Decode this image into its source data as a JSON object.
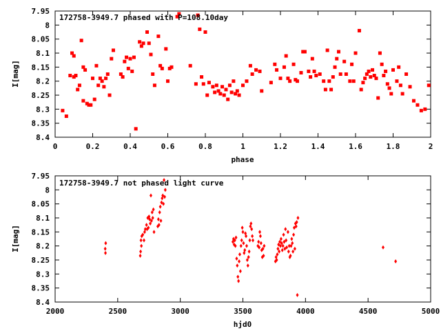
{
  "chart_data": [
    {
      "type": "scatter",
      "title": "172758-3949.7 phased with P=108.10day",
      "xlabel": "phase",
      "ylabel": "I[mag]",
      "xlim": [
        0,
        2
      ],
      "ylim": [
        7.95,
        8.4
      ],
      "y_inverted": true,
      "x_ticks": [
        "0",
        "0.2",
        "0.4",
        "0.6",
        "0.8",
        "1",
        "1.2",
        "1.4",
        "1.6",
        "1.8",
        "2"
      ],
      "y_ticks": [
        "7.95",
        "8",
        "8.05",
        "8.1",
        "8.15",
        "8.2",
        "8.25",
        "8.3",
        "8.35",
        "8.4"
      ],
      "marker_color": "#ff0000",
      "series": [
        {
          "points": [
            [
              0.04,
              8.305
            ],
            [
              0.06,
              8.325
            ],
            [
              0.08,
              8.18
            ],
            [
              0.09,
              8.1
            ],
            [
              0.1,
              8.185
            ],
            [
              0.1,
              8.11
            ],
            [
              0.11,
              8.18
            ],
            [
              0.12,
              8.23
            ],
            [
              0.13,
              8.215
            ],
            [
              0.14,
              8.055
            ],
            [
              0.15,
              8.15
            ],
            [
              0.15,
              8.27
            ],
            [
              0.16,
              8.16
            ],
            [
              0.17,
              8.28
            ],
            [
              0.18,
              8.285
            ],
            [
              0.19,
              8.285
            ],
            [
              0.2,
              8.19
            ],
            [
              0.21,
              8.265
            ],
            [
              0.22,
              8.145
            ],
            [
              0.23,
              8.215
            ],
            [
              0.24,
              8.19
            ],
            [
              0.25,
              8.2
            ],
            [
              0.26,
              8.22
            ],
            [
              0.27,
              8.19
            ],
            [
              0.28,
              8.175
            ],
            [
              0.29,
              8.25
            ],
            [
              0.3,
              8.12
            ],
            [
              0.31,
              8.09
            ],
            [
              0.35,
              8.175
            ],
            [
              0.36,
              8.185
            ],
            [
              0.37,
              8.13
            ],
            [
              0.38,
              8.115
            ],
            [
              0.39,
              8.155
            ],
            [
              0.4,
              8.12
            ],
            [
              0.41,
              8.165
            ],
            [
              0.42,
              8.115
            ],
            [
              0.43,
              8.37
            ],
            [
              0.45,
              8.06
            ],
            [
              0.46,
              8.075
            ],
            [
              0.47,
              8.065
            ],
            [
              0.49,
              8.025
            ],
            [
              0.5,
              8.065
            ],
            [
              0.51,
              8.105
            ],
            [
              0.52,
              8.175
            ],
            [
              0.53,
              8.215
            ],
            [
              0.55,
              8.04
            ],
            [
              0.56,
              8.145
            ],
            [
              0.57,
              8.155
            ],
            [
              0.59,
              8.085
            ],
            [
              0.6,
              8.2
            ],
            [
              0.61,
              8.155
            ],
            [
              0.62,
              8.15
            ],
            [
              0.65,
              7.97
            ],
            [
              0.66,
              7.96
            ],
            [
              0.72,
              8.145
            ],
            [
              0.75,
              8.21
            ],
            [
              0.76,
              7.965
            ],
            [
              0.77,
              8.015
            ],
            [
              0.78,
              8.185
            ],
            [
              0.79,
              8.21
            ],
            [
              0.8,
              8.025
            ],
            [
              0.81,
              8.25
            ],
            [
              0.82,
              8.205
            ],
            [
              0.84,
              8.22
            ],
            [
              0.85,
              8.24
            ],
            [
              0.86,
              8.215
            ],
            [
              0.87,
              8.235
            ],
            [
              0.88,
              8.245
            ],
            [
              0.89,
              8.22
            ],
            [
              0.9,
              8.25
            ],
            [
              0.91,
              8.23
            ],
            [
              0.92,
              8.265
            ],
            [
              0.93,
              8.215
            ],
            [
              0.94,
              8.24
            ],
            [
              0.95,
              8.2
            ],
            [
              0.96,
              8.245
            ],
            [
              0.97,
              8.235
            ],
            [
              0.98,
              8.25
            ],
            [
              1.0,
              8.215
            ],
            [
              1.02,
              8.2
            ],
            [
              1.04,
              8.145
            ],
            [
              1.05,
              8.175
            ],
            [
              1.07,
              8.16
            ],
            [
              1.09,
              8.165
            ],
            [
              1.1,
              8.235
            ],
            [
              1.15,
              8.205
            ],
            [
              1.17,
              8.14
            ],
            [
              1.18,
              8.16
            ],
            [
              1.2,
              8.19
            ],
            [
              1.22,
              8.15
            ],
            [
              1.23,
              8.11
            ],
            [
              1.24,
              8.19
            ],
            [
              1.25,
              8.2
            ],
            [
              1.27,
              8.14
            ],
            [
              1.28,
              8.195
            ],
            [
              1.29,
              8.2
            ],
            [
              1.31,
              8.17
            ],
            [
              1.32,
              8.095
            ],
            [
              1.33,
              8.095
            ],
            [
              1.35,
              8.165
            ],
            [
              1.36,
              8.185
            ],
            [
              1.37,
              8.12
            ],
            [
              1.38,
              8.165
            ],
            [
              1.39,
              8.18
            ],
            [
              1.41,
              8.175
            ],
            [
              1.43,
              8.2
            ],
            [
              1.44,
              8.23
            ],
            [
              1.45,
              8.09
            ],
            [
              1.46,
              8.2
            ],
            [
              1.47,
              8.23
            ],
            [
              1.48,
              8.185
            ],
            [
              1.49,
              8.15
            ],
            [
              1.5,
              8.12
            ],
            [
              1.51,
              8.095
            ],
            [
              1.52,
              8.175
            ],
            [
              1.54,
              8.13
            ],
            [
              1.55,
              8.175
            ],
            [
              1.57,
              8.2
            ],
            [
              1.58,
              8.14
            ],
            [
              1.59,
              8.2
            ],
            [
              1.6,
              8.1
            ],
            [
              1.62,
              8.02
            ],
            [
              1.63,
              8.23
            ],
            [
              1.64,
              8.205
            ],
            [
              1.65,
              8.19
            ],
            [
              1.66,
              8.175
            ],
            [
              1.67,
              8.165
            ],
            [
              1.68,
              8.185
            ],
            [
              1.69,
              8.16
            ],
            [
              1.7,
              8.18
            ],
            [
              1.71,
              8.19
            ],
            [
              1.72,
              8.26
            ],
            [
              1.73,
              8.1
            ],
            [
              1.74,
              8.14
            ],
            [
              1.75,
              8.18
            ],
            [
              1.76,
              8.165
            ],
            [
              1.77,
              8.21
            ],
            [
              1.78,
              8.225
            ],
            [
              1.79,
              8.245
            ],
            [
              1.8,
              8.16
            ],
            [
              1.82,
              8.2
            ],
            [
              1.83,
              8.15
            ],
            [
              1.84,
              8.215
            ],
            [
              1.85,
              8.245
            ],
            [
              1.87,
              8.175
            ],
            [
              1.89,
              8.22
            ],
            [
              1.91,
              8.27
            ],
            [
              1.93,
              8.285
            ],
            [
              1.95,
              8.305
            ],
            [
              1.97,
              8.3
            ],
            [
              1.99,
              8.215
            ]
          ]
        }
      ]
    },
    {
      "type": "scatter",
      "title": "172758-3949.7 not phased light curve",
      "xlabel": "hjd0",
      "ylabel": "I[mag]",
      "xlim": [
        2000,
        5000
      ],
      "ylim": [
        7.95,
        8.4
      ],
      "y_inverted": true,
      "x_ticks": [
        "2000",
        "2500",
        "3000",
        "3500",
        "4000",
        "4500",
        "5000"
      ],
      "y_ticks": [
        "7.95",
        "8",
        "8.05",
        "8.1",
        "8.15",
        "8.2",
        "8.25",
        "8.3",
        "8.35",
        "8.4"
      ],
      "marker_color": "#ff0000",
      "series": [
        {
          "points": [
            [
              2400,
              8.21
            ],
            [
              2402,
              8.225
            ],
            [
              2404,
              8.19
            ],
            [
              2680,
              8.235
            ],
            [
              2683,
              8.22
            ],
            [
              2686,
              8.18
            ],
            [
              2689,
              8.2
            ],
            [
              2692,
              8.165
            ],
            [
              2700,
              8.16
            ],
            [
              2710,
              8.18
            ],
            [
              2715,
              8.15
            ],
            [
              2720,
              8.14
            ],
            [
              2730,
              8.125
            ],
            [
              2735,
              8.14
            ],
            [
              2740,
              8.1
            ],
            [
              2745,
              8.135
            ],
            [
              2750,
              8.095
            ],
            [
              2755,
              8.105
            ],
            [
              2760,
              8.12
            ],
            [
              2765,
              8.02
            ],
            [
              2770,
              8.11
            ],
            [
              2775,
              8.08
            ],
            [
              2780,
              8.1
            ],
            [
              2785,
              8.07
            ],
            [
              2790,
              8.15
            ],
            [
              2820,
              8.13
            ],
            [
              2825,
              8.105
            ],
            [
              2830,
              8.125
            ],
            [
              2835,
              8.08
            ],
            [
              2840,
              8.06
            ],
            [
              2845,
              8.11
            ],
            [
              2850,
              8.045
            ],
            [
              2855,
              8.03
            ],
            [
              2860,
              8.02
            ],
            [
              2865,
              8.05
            ],
            [
              2870,
              7.965
            ],
            [
              2875,
              8.025
            ],
            [
              2880,
              8.0
            ],
            [
              3420,
              8.185
            ],
            [
              3425,
              8.175
            ],
            [
              3430,
              8.195
            ],
            [
              3435,
              8.18
            ],
            [
              3440,
              8.2
            ],
            [
              3445,
              8.17
            ],
            [
              3450,
              8.245
            ],
            [
              3455,
              8.27
            ],
            [
              3460,
              8.31
            ],
            [
              3465,
              8.325
            ],
            [
              3470,
              8.255
            ],
            [
              3475,
              8.23
            ],
            [
              3480,
              8.29
            ],
            [
              3485,
              8.2
            ],
            [
              3490,
              8.18
            ],
            [
              3495,
              8.135
            ],
            [
              3500,
              8.15
            ],
            [
              3505,
              8.19
            ],
            [
              3510,
              8.225
            ],
            [
              3515,
              8.215
            ],
            [
              3520,
              8.155
            ],
            [
              3525,
              8.165
            ],
            [
              3530,
              8.2
            ],
            [
              3535,
              8.25
            ],
            [
              3540,
              8.27
            ],
            [
              3545,
              8.24
            ],
            [
              3550,
              8.22
            ],
            [
              3555,
              8.18
            ],
            [
              3560,
              8.13
            ],
            [
              3565,
              8.12
            ],
            [
              3570,
              8.14
            ],
            [
              3575,
              8.165
            ],
            [
              3580,
              8.18
            ],
            [
              3620,
              8.2
            ],
            [
              3625,
              8.185
            ],
            [
              3630,
              8.205
            ],
            [
              3635,
              8.15
            ],
            [
              3640,
              8.165
            ],
            [
              3645,
              8.19
            ],
            [
              3650,
              8.215
            ],
            [
              3655,
              8.24
            ],
            [
              3660,
              8.21
            ],
            [
              3665,
              8.235
            ],
            [
              3670,
              8.2
            ],
            [
              3760,
              8.255
            ],
            [
              3765,
              8.24
            ],
            [
              3770,
              8.25
            ],
            [
              3775,
              8.23
            ],
            [
              3780,
              8.21
            ],
            [
              3785,
              8.195
            ],
            [
              3790,
              8.22
            ],
            [
              3795,
              8.185
            ],
            [
              3800,
              8.2
            ],
            [
              3805,
              8.175
            ],
            [
              3810,
              8.19
            ],
            [
              3815,
              8.215
            ],
            [
              3820,
              8.2
            ],
            [
              3825,
              8.16
            ],
            [
              3830,
              8.185
            ],
            [
              3835,
              8.21
            ],
            [
              3840,
              8.14
            ],
            [
              3845,
              8.18
            ],
            [
              3850,
              8.205
            ],
            [
              3860,
              8.15
            ],
            [
              3865,
              8.22
            ],
            [
              3870,
              8.2
            ],
            [
              3875,
              8.24
            ],
            [
              3880,
              8.235
            ],
            [
              3885,
              8.2
            ],
            [
              3890,
              8.175
            ],
            [
              3895,
              8.19
            ],
            [
              3900,
              8.22
            ],
            [
              3905,
              8.16
            ],
            [
              3910,
              8.135
            ],
            [
              3915,
              8.21
            ],
            [
              3920,
              8.12
            ],
            [
              3925,
              8.13
            ],
            [
              3930,
              8.115
            ],
            [
              3935,
              8.375
            ],
            [
              3940,
              8.1
            ],
            [
              4620,
              8.205
            ],
            [
              4720,
              8.255
            ]
          ]
        }
      ]
    }
  ]
}
